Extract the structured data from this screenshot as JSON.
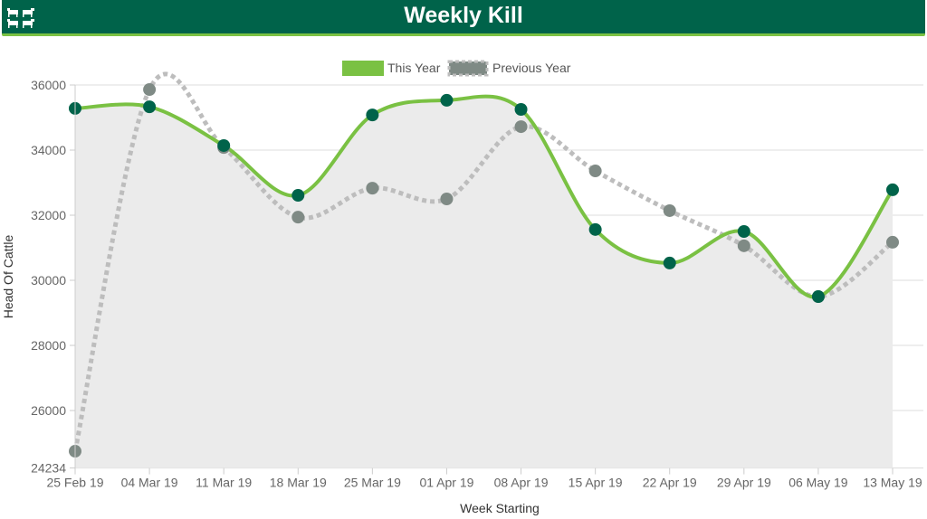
{
  "header": {
    "title": "Weekly Kill",
    "logo_icon": "cattle-icon"
  },
  "colors": {
    "this_year": "#7ac143",
    "this_year_marker": "#00634a",
    "previous_year": "#bdbdbd",
    "previous_year_marker": "#7f8a85",
    "fill": "#ebebeb"
  },
  "chart_data": {
    "type": "line",
    "title": "",
    "xlabel": "Week Starting",
    "ylabel": "Head Of Cattle",
    "ylim": [
      24234,
      36000
    ],
    "yticks": [
      "24234",
      "26000",
      "28000",
      "30000",
      "32000",
      "34000",
      "36000"
    ],
    "ytick_values": [
      24234,
      26000,
      28000,
      30000,
      32000,
      34000,
      36000
    ],
    "categories": [
      "25 Feb 19",
      "04 Mar 19",
      "11 Mar 19",
      "18 Mar 19",
      "25 Mar 19",
      "01 Apr 19",
      "08 Apr 19",
      "15 Apr 19",
      "22 Apr 19",
      "29 Apr 19",
      "06 May 19",
      "13 May 19"
    ],
    "legend_position": "top-center",
    "grid": true,
    "series": [
      {
        "name": "This Year",
        "values": [
          35280,
          35330,
          34140,
          32610,
          35080,
          35530,
          35250,
          31560,
          30530,
          31500,
          29500,
          32780
        ]
      },
      {
        "name": "Previous Year",
        "values": [
          24750,
          35860,
          34080,
          31940,
          32830,
          32500,
          34720,
          33360,
          32140,
          31060,
          29500,
          31170
        ]
      }
    ]
  }
}
